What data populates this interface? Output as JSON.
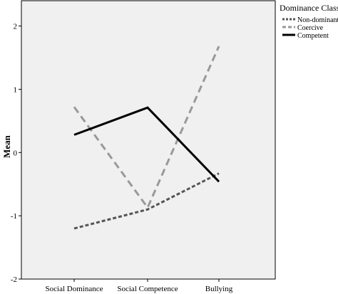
{
  "chart_data": {
    "type": "line",
    "ylabel": "Mean",
    "xlabel": "",
    "categories": [
      "Social Dominance",
      "Social Competence",
      "Bullying"
    ],
    "ylim": [
      -2,
      2.4
    ],
    "yticks": [
      2,
      1,
      0,
      -1,
      -2
    ],
    "grid": false,
    "plot_background": "#f0f0f0",
    "legend": {
      "title": "Dominance Class",
      "placement": "right-top",
      "entries": [
        "Non-dominant",
        "Coercive",
        "Competent"
      ]
    },
    "series": [
      {
        "name": "Non-dominant",
        "values": [
          -1.2,
          -0.9,
          -0.33
        ],
        "color": "#555555",
        "style": "dashed-fine"
      },
      {
        "name": "Coercive",
        "values": [
          0.72,
          -0.87,
          1.68
        ],
        "color": "#999999",
        "style": "dashed"
      },
      {
        "name": "Competent",
        "values": [
          0.28,
          0.71,
          -0.46
        ],
        "color": "#000000",
        "style": "solid"
      }
    ]
  }
}
